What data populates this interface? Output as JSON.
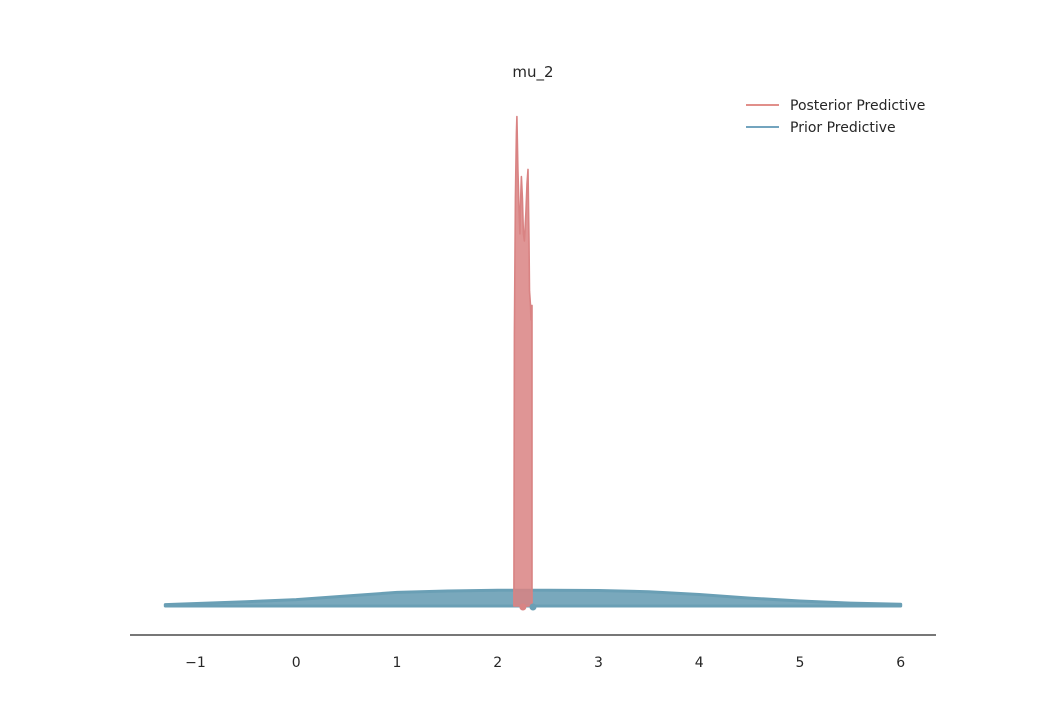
{
  "chart_data": {
    "type": "area",
    "title": "mu_2",
    "xlabel": "",
    "ylabel": "",
    "xlim": [
      -1.65,
      6.35
    ],
    "ylim": [
      -0.02,
      3.5
    ],
    "xticks": [
      -1,
      0,
      1,
      2,
      3,
      4,
      5,
      6
    ],
    "xtick_labels": [
      "−1",
      "0",
      "1",
      "2",
      "3",
      "4",
      "5",
      "6"
    ],
    "grid": false,
    "legend_position": "top-right",
    "series": [
      {
        "name": "Prior Predictive",
        "color": "#6a9fb5",
        "x": [
          -1.3,
          -0.5,
          0,
          0.5,
          1,
          1.5,
          2,
          2.5,
          3,
          3.5,
          4,
          4.5,
          5,
          5.5,
          6
        ],
        "y": [
          0.01,
          0.03,
          0.045,
          0.07,
          0.095,
          0.105,
          0.11,
          0.11,
          0.108,
          0.1,
          0.08,
          0.055,
          0.035,
          0.02,
          0.012
        ]
      },
      {
        "name": "Posterior Predictive",
        "color": "#d98383",
        "x": [
          2.16,
          2.165,
          2.175,
          2.185,
          2.19,
          2.2,
          2.21,
          2.22,
          2.23,
          2.235,
          2.245,
          2.255,
          2.265,
          2.28,
          2.29,
          2.3,
          2.31,
          2.315,
          2.325,
          2.33,
          2.34
        ],
        "y": [
          0.0,
          1.9,
          2.85,
          3.3,
          3.42,
          3.05,
          2.8,
          2.6,
          2.9,
          3.0,
          2.85,
          2.6,
          2.55,
          2.75,
          2.95,
          3.05,
          2.55,
          2.2,
          2.1,
          2.0,
          2.1
        ]
      }
    ],
    "points": [
      {
        "series": "Posterior Predictive",
        "x": 2.25,
        "y": 0
      },
      {
        "series": "Prior Predictive",
        "x": 2.35,
        "y": 0
      }
    ]
  }
}
